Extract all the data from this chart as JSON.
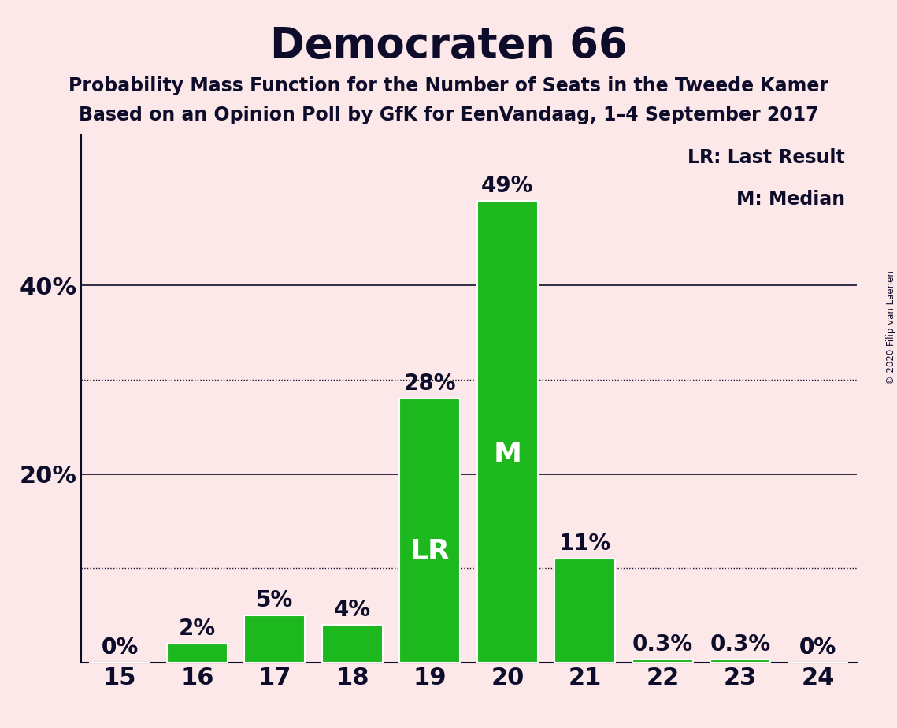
{
  "title": "Democraten 66",
  "subtitle1": "Probability Mass Function for the Number of Seats in the Tweede Kamer",
  "subtitle2": "Based on an Opinion Poll by GfK for EenVandaag, 1–4 September 2017",
  "copyright": "© 2020 Filip van Laenen",
  "seats": [
    15,
    16,
    17,
    18,
    19,
    20,
    21,
    22,
    23,
    24
  ],
  "probabilities": [
    0.0,
    2.0,
    5.0,
    4.0,
    28.0,
    49.0,
    11.0,
    0.3,
    0.3,
    0.0
  ],
  "bar_color": "#1db81d",
  "bar_edge_color": "#ffffff",
  "background_color": "#fce8e8",
  "text_color": "#0d0d2b",
  "solid_gridlines": [
    20,
    40
  ],
  "dotted_gridlines": [
    10,
    30
  ],
  "lr_seat": 19,
  "median_seat": 20,
  "legend_lr": "LR: Last Result",
  "legend_m": "M: Median",
  "bar_label_fontsize": 20,
  "title_fontsize": 38,
  "subtitle_fontsize": 17,
  "axis_tick_fontsize": 22,
  "inside_label_fontsize": 26,
  "legend_fontsize": 17,
  "ylim": [
    0,
    56
  ],
  "bar_width": 0.78
}
